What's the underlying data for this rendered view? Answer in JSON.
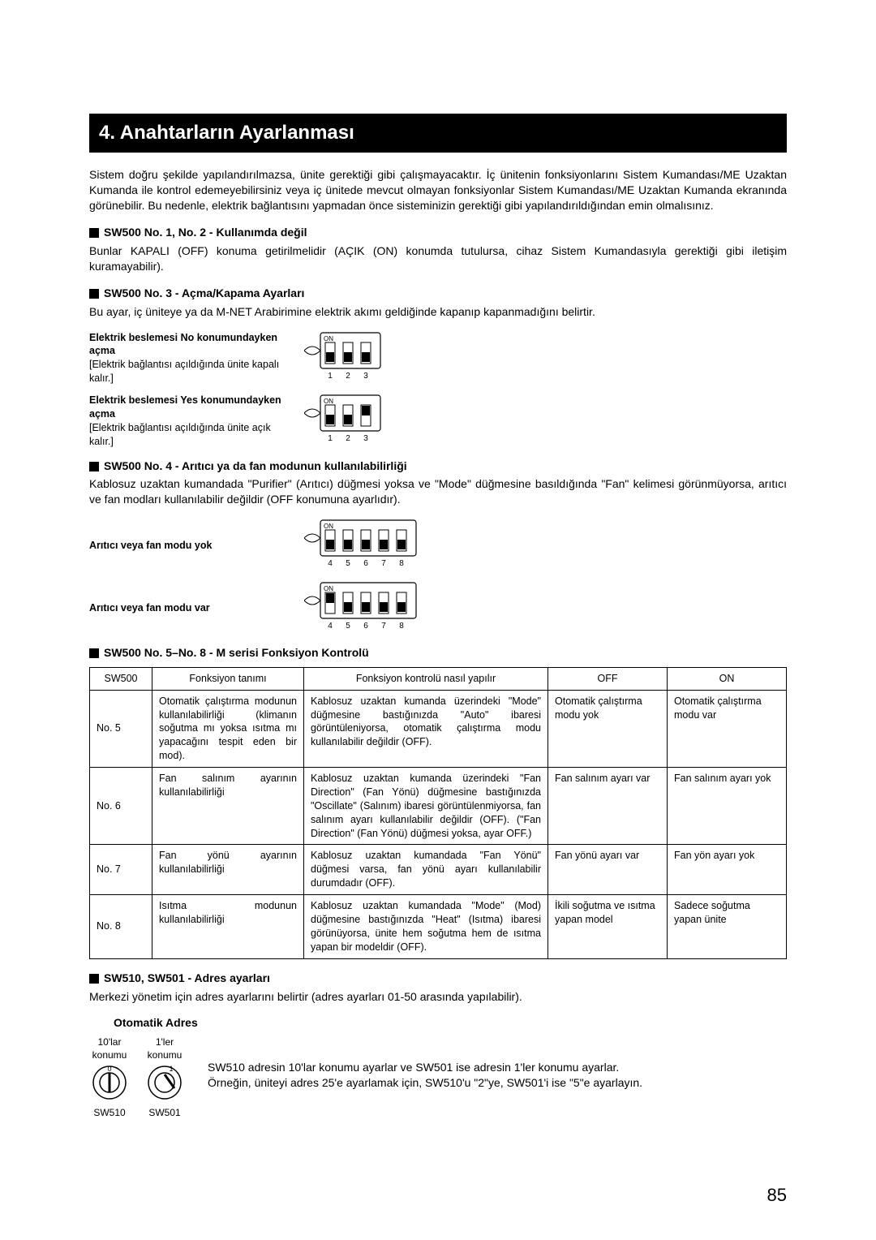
{
  "section_title": "4. Anahtarların Ayarlanması",
  "intro": "Sistem doğru şekilde yapılandırılmazsa, ünite gerektiği gibi çalışmayacaktır. İç ünitenin fonksiyonlarını Sistem Kumandası/ME Uzaktan Kumanda ile kontrol edemeyebilirsiniz veya iç ünitede mevcut olmayan fonksiyonlar Sistem Kumandası/ME Uzaktan Kumanda ekranında görünebilir. Bu nedenle, elektrik bağlantısını yapmadan önce sisteminizin gerektiği gibi yapılandırıldığından emin olmalısınız.",
  "sw12_head": "SW500 No. 1, No. 2 - Kullanımda değil",
  "sw12_body": "Bunlar KAPALI (OFF) konuma getirilmelidir (AÇIK (ON) konumda tutulursa, cihaz Sistem Kumandasıyla gerektiği gibi iletişim kuramayabilir).",
  "sw3_head": "SW500 No. 3 - Açma/Kapama Ayarları",
  "sw3_body": "Bu ayar, iç üniteye ya da M-NET Arabirimine elektrik akımı geldiğinde kapanıp kapanmadığını belirtir.",
  "dip3_rows": [
    {
      "title": "Elektrik beslemesi No konumundayken açma",
      "desc": "[Elektrik bağlantısı açıldığında ünite kapalı kalır.]",
      "pattern": [
        0,
        0,
        0
      ],
      "labels": [
        "1",
        "2",
        "3"
      ]
    },
    {
      "title": "Elektrik beslemesi Yes konumundayken açma",
      "desc": "[Elektrik bağlantısı açıldığında ünite açık kalır.]",
      "pattern": [
        0,
        0,
        1
      ],
      "labels": [
        "1",
        "2",
        "3"
      ]
    }
  ],
  "sw4_head": "SW500 No. 4 - Arıtıcı ya da fan modunun kullanılabilirliği",
  "sw4_body": "Kablosuz uzaktan kumandada \"Purifier\" (Arıtıcı) düğmesi yoksa ve \"Mode\" düğmesine basıldığında \"Fan\" kelimesi görünmüyorsa, arıtıcı ve fan modları kullanılabilir değildir (OFF konumuna ayarlıdır).",
  "dip4_rows": [
    {
      "title": "Arıtıcı veya fan modu yok",
      "pattern": [
        0,
        0,
        0,
        0,
        0
      ],
      "labels": [
        "4",
        "5",
        "6",
        "7",
        "8"
      ]
    },
    {
      "title": "Arıtıcı veya fan modu var",
      "pattern": [
        1,
        0,
        0,
        0,
        0
      ],
      "labels": [
        "4",
        "5",
        "6",
        "7",
        "8"
      ]
    }
  ],
  "sw58_head": "SW500 No. 5–No. 8 - M serisi Fonksiyon Kontrolü",
  "table_headers": [
    "SW500",
    "Fonksiyon tanımı",
    "Fonksiyon kontrolü nasıl yapılır",
    "OFF",
    "ON"
  ],
  "table_rows": [
    {
      "c0": "No. 5",
      "c1": "Otomatik çalıştırma modunun kullanılabilirliği (klimanın soğutma mı yoksa ısıtma mı yapacağını tespit eden bir mod).",
      "c2": "Kablosuz uzaktan kumanda üzerindeki \"Mode\" düğmesine bastığınızda \"Auto\" ibaresi görüntüleniyorsa, otomatik çalıştırma modu kullanılabilir değildir (OFF).",
      "c3": "Otomatik çalıştırma modu yok",
      "c4": "Otomatik çalıştırma modu var"
    },
    {
      "c0": "No. 6",
      "c1": "Fan salınım ayarının kullanılabilirliği",
      "c2": "Kablosuz uzaktan kumanda üzerindeki \"Fan Direction\" (Fan Yönü) düğmesine bastığınızda \"Oscillate\" (Salınım) ibaresi görüntülenmiyorsa, fan salınım ayarı kullanılabilir değildir (OFF). (\"Fan Direction\" (Fan Yönü) düğmesi yoksa, ayar OFF.)",
      "c3": "Fan salınım ayarı var",
      "c4": "Fan salınım ayarı yok"
    },
    {
      "c0": "No. 7",
      "c1": "Fan yönü ayarının kullanılabilirliği",
      "c2": "Kablosuz uzaktan kumandada \"Fan Yönü\" düğmesi varsa, fan yönü ayarı kullanılabilir durumdadır (OFF).",
      "c3": "Fan yönü ayarı var",
      "c4": "Fan yön ayarı yok"
    },
    {
      "c0": "No. 8",
      "c1": "Isıtma modunun kullanılabilirliği",
      "c2": "Kablosuz uzaktan kumandada \"Mode\" (Mod) düğmesine bastığınızda \"Heat\" (Isıtma) ibaresi görünüyorsa, ünite hem soğutma hem de ısıtma yapan bir modeldir (OFF).",
      "c3": "İkili soğutma ve ısıtma yapan model",
      "c4": "Sadece soğutma yapan ünite"
    }
  ],
  "sw510_head": "SW510, SW501 - Adres ayarları",
  "sw510_body": "Merkezi yönetim için adres ayarlarını belirtir (adres ayarları 01-50 arasında yapılabilir).",
  "ot_adres": "Otomatik Adres",
  "dials": {
    "left_top": "10'lar\nkonumu",
    "left_label": "SW510",
    "right_top": "1'ler\nkonumu",
    "right_label": "SW501"
  },
  "addr_text1": "SW510 adresin 10'lar konumu ayarlar ve SW501 ise adresin 1'ler konumu ayarlar.",
  "addr_text2": "Örneğin, üniteyi adres 25'e ayarlamak için, SW510'u \"2\"ye, SW501'i ise \"5\"e ayarlayın.",
  "page_number": "85",
  "colors": {
    "text": "#000",
    "bg": "#fff",
    "bar": "#000"
  }
}
